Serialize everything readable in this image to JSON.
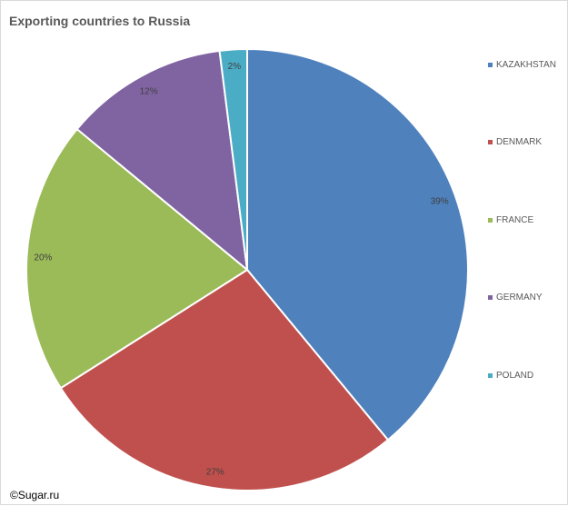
{
  "title": "Exporting countries to Russia",
  "watermark": "©Sugar.ru",
  "chart_data": {
    "type": "pie",
    "title": "Exporting countries to Russia",
    "start_angle": "12 o'clock, clockwise",
    "legend_position": "right",
    "slices": [
      {
        "name": "KAZAKHSTAN",
        "value": 39,
        "label": "39%",
        "color": "#4f81bd"
      },
      {
        "name": "DENMARK",
        "value": 27,
        "label": "27%",
        "color": "#c0504d"
      },
      {
        "name": "FRANCE",
        "value": 20,
        "label": "20%",
        "color": "#9bbb59"
      },
      {
        "name": "GERMANY",
        "value": 12,
        "label": "12%",
        "color": "#8064a2"
      },
      {
        "name": "POLAND",
        "value": 2,
        "label": "2%",
        "color": "#4bacc6"
      }
    ]
  }
}
